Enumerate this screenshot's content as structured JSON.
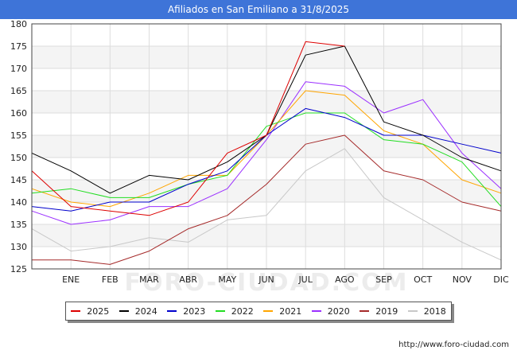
{
  "header": {
    "title": "Afiliados en San Emiliano a 31/8/2025"
  },
  "source": "http://www.foro-ciudad.com",
  "watermark": "FORO-CIUDAD.COM",
  "chart_data": {
    "type": "line",
    "title": "Afiliados en San Emiliano a 31/8/2025",
    "categories": [
      "",
      "ENE",
      "FEB",
      "MAR",
      "ABR",
      "MAY",
      "JUN",
      "JUL",
      "AGO",
      "SEP",
      "OCT",
      "NOV",
      "DIC"
    ],
    "ylim": [
      125,
      180
    ],
    "yticks": [
      125,
      130,
      135,
      140,
      145,
      150,
      155,
      160,
      165,
      170,
      175,
      180
    ],
    "grid": true,
    "legend_position": "bottom",
    "series": [
      {
        "name": "2018",
        "color": "#c8c8c8",
        "values": [
          134,
          129,
          130,
          132,
          131,
          136,
          137,
          147,
          152,
          141,
          136,
          131,
          127
        ]
      },
      {
        "name": "2019",
        "color": "#a52a2a",
        "values": [
          127,
          127,
          126,
          129,
          134,
          137,
          144,
          153,
          155,
          147,
          145,
          140,
          138
        ]
      },
      {
        "name": "2020",
        "color": "#9b30ff",
        "values": [
          138,
          135,
          136,
          139,
          139,
          143,
          154,
          167,
          166,
          160,
          163,
          151,
          143
        ]
      },
      {
        "name": "2021",
        "color": "#ffa500",
        "values": [
          143,
          140,
          139,
          142,
          146,
          146,
          155,
          165,
          164,
          156,
          153,
          145,
          142
        ]
      },
      {
        "name": "2022",
        "color": "#22dd22",
        "values": [
          142,
          143,
          141,
          141,
          144,
          146,
          157,
          160,
          160,
          154,
          153,
          149,
          139
        ]
      },
      {
        "name": "2023",
        "color": "#0000cc",
        "values": [
          139,
          138,
          140,
          140,
          144,
          147,
          155,
          161,
          159,
          155,
          155,
          153,
          151
        ]
      },
      {
        "name": "2024",
        "color": "#000000",
        "values": [
          151,
          147,
          142,
          146,
          145,
          149,
          155,
          173,
          175,
          158,
          155,
          150,
          147
        ]
      },
      {
        "name": "2025",
        "color": "#dd0000",
        "values": [
          147,
          139,
          138,
          137,
          140,
          151,
          155,
          176,
          175,
          null,
          null,
          null,
          null
        ]
      }
    ]
  },
  "legend": [
    {
      "label": "2025",
      "color": "#dd0000"
    },
    {
      "label": "2024",
      "color": "#000000"
    },
    {
      "label": "2023",
      "color": "#0000cc"
    },
    {
      "label": "2022",
      "color": "#22dd22"
    },
    {
      "label": "2021",
      "color": "#ffa500"
    },
    {
      "label": "2020",
      "color": "#9b30ff"
    },
    {
      "label": "2019",
      "color": "#a52a2a"
    },
    {
      "label": "2018",
      "color": "#c8c8c8"
    }
  ]
}
